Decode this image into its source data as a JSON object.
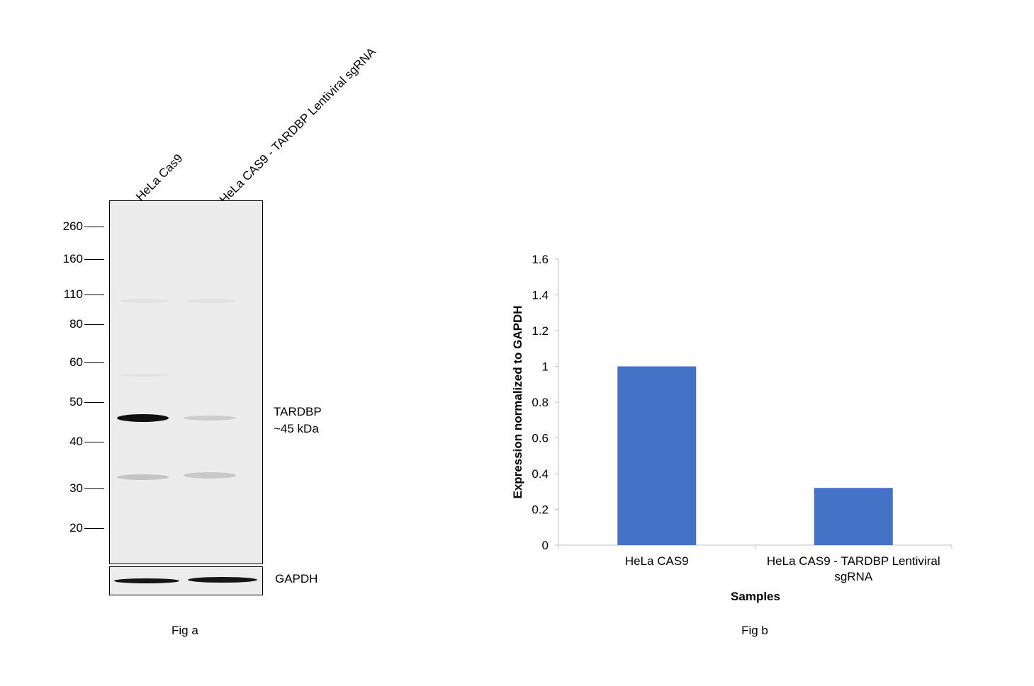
{
  "western_blot": {
    "lanes": [
      "HeLa Cas9",
      "HeLa CAS9 - TARDBP Lentiviral sgRNA"
    ],
    "markers": [
      "260",
      "160",
      "110",
      "80",
      "60",
      "50",
      "40",
      "30",
      "20"
    ],
    "target_label": "TARDBP",
    "target_size": "~45 kDa",
    "loading_control": "GAPDH",
    "caption": "Fig a"
  },
  "chart_data": {
    "type": "bar",
    "categories": [
      "HeLa CAS9",
      "HeLa CAS9 - TARDBP Lentiviral sgRNA"
    ],
    "category_lines": [
      [
        "HeLa CAS9"
      ],
      [
        "HeLa CAS9 - TARDBP Lentiviral",
        "sgRNA"
      ]
    ],
    "values": [
      1.0,
      0.32
    ],
    "xlabel": "Samples",
    "ylabel": "Expression normalized to GAPDH",
    "ylim": [
      0,
      1.6
    ],
    "yticks": [
      "0",
      "0.2",
      "0.4",
      "0.6",
      "0.8",
      "1",
      "1.2",
      "1.4",
      "1.6"
    ],
    "grid": false,
    "bar_color": "#4472C4",
    "caption": "Fig b"
  }
}
